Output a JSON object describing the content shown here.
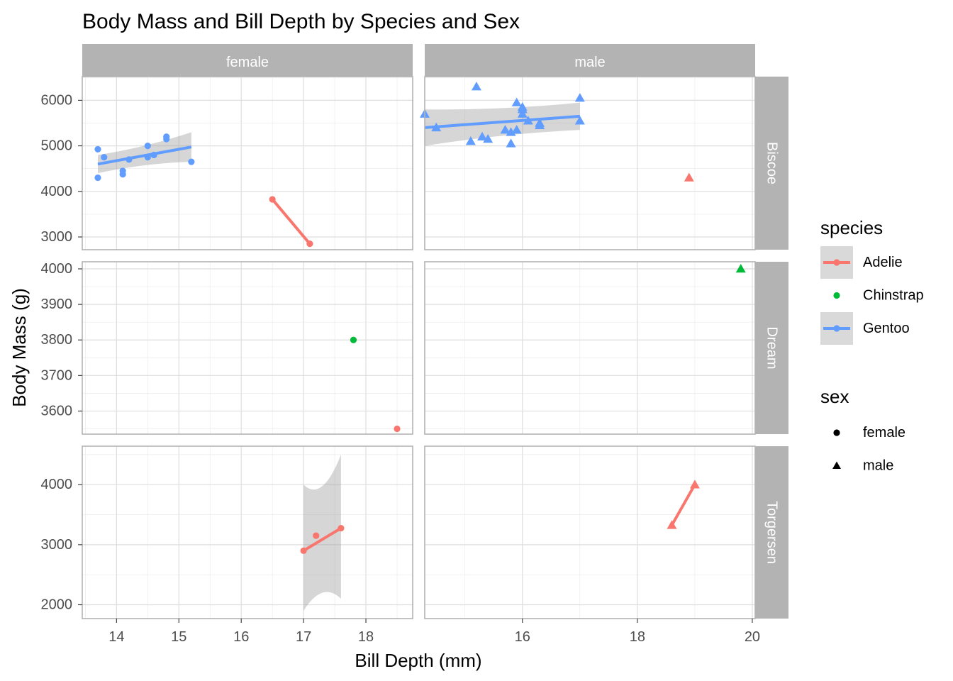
{
  "chart_data": {
    "type": "scatter",
    "title": "Body Mass and Bill Depth by Species and Sex",
    "xlabel": "Bill Depth (mm)",
    "ylabel": "Body Mass (g)",
    "grid": true,
    "facet_cols": [
      "female",
      "male"
    ],
    "facet_rows": [
      "Biscoe",
      "Dream",
      "Torgersen"
    ],
    "col_xlim": {
      "female": [
        13.45,
        18.75
      ],
      "male": [
        14.3,
        20.05
      ]
    },
    "col_xticks": {
      "female": [
        14,
        15,
        16,
        17,
        18
      ],
      "male": [
        16,
        18,
        20
      ]
    },
    "row_ylim": {
      "Biscoe": [
        2720,
        6520
      ],
      "Dream": [
        3535,
        4020
      ],
      "Torgersen": [
        1770,
        4640
      ]
    },
    "row_yticks": {
      "Biscoe": [
        3000,
        4000,
        5000,
        6000
      ],
      "Dream": [
        3600,
        3700,
        3800,
        3900,
        4000
      ],
      "Torgersen": [
        2000,
        3000,
        4000
      ]
    },
    "species_colors": {
      "Adelie": "#F8766D",
      "Chinstrap": "#00BA38",
      "Gentoo": "#619CFF"
    },
    "legend": {
      "species_title": "species",
      "species": [
        "Adelie",
        "Chinstrap",
        "Gentoo"
      ],
      "sex_title": "sex",
      "sex": [
        "female",
        "male"
      ],
      "placement": "right"
    },
    "panels": [
      {
        "island": "Biscoe",
        "sex": "female",
        "points": [
          {
            "species": "Gentoo",
            "x": 13.7,
            "y": 4925
          },
          {
            "species": "Gentoo",
            "x": 13.8,
            "y": 4750
          },
          {
            "species": "Gentoo",
            "x": 13.7,
            "y": 4300
          },
          {
            "species": "Gentoo",
            "x": 14.1,
            "y": 4450
          },
          {
            "species": "Gentoo",
            "x": 14.1,
            "y": 4375
          },
          {
            "species": "Gentoo",
            "x": 14.2,
            "y": 4700
          },
          {
            "species": "Gentoo",
            "x": 14.5,
            "y": 4750
          },
          {
            "species": "Gentoo",
            "x": 14.5,
            "y": 5000
          },
          {
            "species": "Gentoo",
            "x": 14.6,
            "y": 4800
          },
          {
            "species": "Gentoo",
            "x": 14.8,
            "y": 5150
          },
          {
            "species": "Gentoo",
            "x": 14.8,
            "y": 5200
          },
          {
            "species": "Gentoo",
            "x": 15.2,
            "y": 4650
          },
          {
            "species": "Adelie",
            "x": 16.5,
            "y": 3825
          },
          {
            "species": "Adelie",
            "x": 17.1,
            "y": 2850
          }
        ],
        "fits": [
          {
            "species": "Gentoo",
            "x": [
              13.7,
              15.2
            ],
            "y": [
              4600,
              4975
            ],
            "band_lower": [
              4400,
              4650
            ],
            "band_upper": [
              4800,
              5300
            ]
          },
          {
            "species": "Adelie",
            "x": [
              16.5,
              17.1
            ],
            "y": [
              3825,
              2850
            ]
          }
        ]
      },
      {
        "island": "Biscoe",
        "sex": "male",
        "points": [
          {
            "species": "Gentoo",
            "x": 14.3,
            "y": 5700
          },
          {
            "species": "Gentoo",
            "x": 14.5,
            "y": 5400
          },
          {
            "species": "Gentoo",
            "x": 15.1,
            "y": 5100
          },
          {
            "species": "Gentoo",
            "x": 15.2,
            "y": 6300
          },
          {
            "species": "Gentoo",
            "x": 15.3,
            "y": 5200
          },
          {
            "species": "Gentoo",
            "x": 15.4,
            "y": 5150
          },
          {
            "species": "Gentoo",
            "x": 15.7,
            "y": 5350
          },
          {
            "species": "Gentoo",
            "x": 15.8,
            "y": 5050
          },
          {
            "species": "Gentoo",
            "x": 15.8,
            "y": 5300
          },
          {
            "species": "Gentoo",
            "x": 15.9,
            "y": 5950
          },
          {
            "species": "Gentoo",
            "x": 15.9,
            "y": 5350
          },
          {
            "species": "Gentoo",
            "x": 16.0,
            "y": 5850
          },
          {
            "species": "Gentoo",
            "x": 16.0,
            "y": 5800
          },
          {
            "species": "Gentoo",
            "x": 16.0,
            "y": 5700
          },
          {
            "species": "Gentoo",
            "x": 16.1,
            "y": 5550
          },
          {
            "species": "Gentoo",
            "x": 16.3,
            "y": 5500
          },
          {
            "species": "Gentoo",
            "x": 16.3,
            "y": 5450
          },
          {
            "species": "Gentoo",
            "x": 17.0,
            "y": 6050
          },
          {
            "species": "Gentoo",
            "x": 17.0,
            "y": 5550
          },
          {
            "species": "Adelie",
            "x": 18.9,
            "y": 4300
          }
        ],
        "fits": [
          {
            "species": "Gentoo",
            "x": [
              14.3,
              17.0
            ],
            "y": [
              5400,
              5650
            ],
            "band_lower": [
              5000,
              5350
            ],
            "band_upper": [
              5800,
              5950
            ]
          }
        ]
      },
      {
        "island": "Dream",
        "sex": "female",
        "points": [
          {
            "species": "Chinstrap",
            "x": 17.8,
            "y": 3800
          },
          {
            "species": "Adelie",
            "x": 18.5,
            "y": 3550
          }
        ],
        "fits": []
      },
      {
        "island": "Dream",
        "sex": "male",
        "points": [
          {
            "species": "Chinstrap",
            "x": 19.8,
            "y": 4000
          }
        ],
        "fits": []
      },
      {
        "island": "Torgersen",
        "sex": "female",
        "points": [
          {
            "species": "Adelie",
            "x": 17.0,
            "y": 2900
          },
          {
            "species": "Adelie",
            "x": 17.2,
            "y": 3150
          },
          {
            "species": "Adelie",
            "x": 17.6,
            "y": 3275
          }
        ],
        "fits": [
          {
            "species": "Adelie",
            "x": [
              17.0,
              17.6
            ],
            "y": [
              2900,
              3275
            ],
            "band_lower": [
              1900,
              2100
            ],
            "band_upper": [
              4000,
              4500
            ],
            "band_waist": [
              2400,
              3700
            ]
          }
        ]
      },
      {
        "island": "Torgersen",
        "sex": "male",
        "points": [
          {
            "species": "Adelie",
            "x": 18.6,
            "y": 3325
          },
          {
            "species": "Adelie",
            "x": 19.0,
            "y": 4000
          }
        ],
        "fits": [
          {
            "species": "Adelie",
            "x": [
              18.6,
              19.0
            ],
            "y": [
              3325,
              4000
            ]
          }
        ]
      }
    ]
  }
}
